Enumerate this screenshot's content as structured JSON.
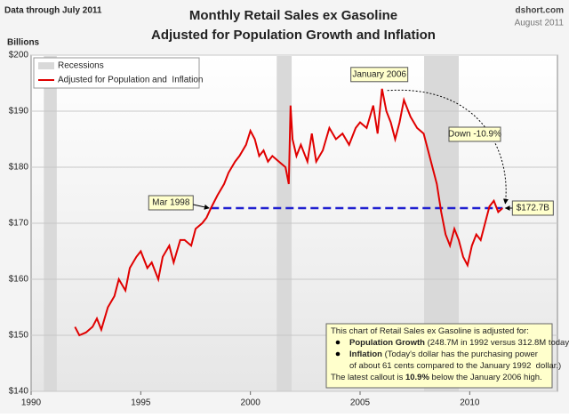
{
  "chart_data": {
    "type": "line",
    "header_left": "Data through July 2011",
    "source": "dshort.com",
    "date": "August 2011",
    "title": "Monthly Retail Sales ex Gasoline",
    "subtitle": "Adjusted for Population Growth and Inflation",
    "y_label": "Billions",
    "xlim": [
      1990,
      2014
    ],
    "xticks": [
      1990,
      1995,
      2000,
      2005,
      2010
    ],
    "ylim": [
      140,
      200
    ],
    "yticks": [
      {
        "value": 140,
        "label": "$140"
      },
      {
        "value": 150,
        "label": "$150"
      },
      {
        "value": 160,
        "label": "$160"
      },
      {
        "value": 170,
        "label": "$170"
      },
      {
        "value": 180,
        "label": "$180"
      },
      {
        "value": 190,
        "label": "$190"
      },
      {
        "value": 200,
        "label": "$200"
      }
    ],
    "grid": true,
    "recessions": {
      "name": "Recessions",
      "color": "#d9d9d9",
      "spans": [
        [
          1990.58,
          1991.17
        ],
        [
          2001.2,
          2001.88
        ],
        [
          2007.92,
          2009.5
        ]
      ]
    },
    "series": [
      {
        "name": "Adjusted for Population and  Inflation",
        "color": "#e00000",
        "x": [
          1992.0,
          1992.2,
          1992.5,
          1992.8,
          1993.0,
          1993.2,
          1993.5,
          1993.8,
          1994.0,
          1994.3,
          1994.5,
          1994.8,
          1995.0,
          1995.3,
          1995.5,
          1995.8,
          1996.0,
          1996.3,
          1996.5,
          1996.8,
          1997.0,
          1997.3,
          1997.5,
          1997.8,
          1998.0,
          1998.2,
          1998.5,
          1998.8,
          1999.0,
          1999.3,
          1999.5,
          1999.8,
          2000.0,
          2000.2,
          2000.4,
          2000.6,
          2000.8,
          2001.0,
          2001.3,
          2001.6,
          2001.75,
          2001.83,
          2001.92,
          2002.1,
          2002.3,
          2002.6,
          2002.8,
          2003.0,
          2003.3,
          2003.6,
          2003.9,
          2004.2,
          2004.5,
          2004.8,
          2005.0,
          2005.3,
          2005.6,
          2005.8,
          2006.0,
          2006.2,
          2006.4,
          2006.6,
          2006.8,
          2007.0,
          2007.3,
          2007.6,
          2007.9,
          2008.1,
          2008.3,
          2008.5,
          2008.7,
          2008.9,
          2009.1,
          2009.3,
          2009.5,
          2009.7,
          2009.9,
          2010.1,
          2010.3,
          2010.5,
          2010.7,
          2010.9,
          2011.1,
          2011.3,
          2011.5
        ],
        "values": [
          151.5,
          150,
          150.5,
          151.5,
          153,
          151,
          155,
          157,
          160,
          158,
          162,
          164,
          165,
          162,
          163,
          160,
          164,
          166,
          163,
          167,
          167,
          166,
          169,
          170,
          171,
          172.7,
          175,
          177,
          179,
          181,
          182,
          184,
          186.5,
          185,
          182,
          183,
          181,
          182,
          181,
          180,
          177,
          191,
          185,
          182,
          184,
          181,
          186,
          181,
          183,
          187,
          185,
          186,
          184,
          187,
          188,
          187,
          191,
          186,
          194,
          190,
          188,
          185,
          188,
          192,
          189,
          187,
          186,
          183,
          180,
          177,
          172,
          168,
          166,
          169,
          167,
          164,
          162.5,
          166,
          168,
          167,
          170,
          173,
          174,
          172,
          172.7
        ]
      }
    ],
    "legend": "upper left",
    "reference": {
      "value": 172.7,
      "label": "$172.7B",
      "color": "#1f1fd0",
      "x": [
        1998.2,
        2011.5
      ]
    },
    "annotations": {
      "start": "Mar 1998",
      "peak": "January 2006",
      "change": "Down -10.9%"
    },
    "note": [
      [
        {
          "text": "This chart of Retail Sales ex Gasoline is adjusted for:"
        }
      ],
      [
        {
          "text": "Population Growth",
          "bold": true
        },
        {
          "text": " (248.7M in 1992 versus 312.8M today)"
        }
      ],
      [
        {
          "text": "Inflation",
          "bold": true
        },
        {
          "text": " (Today's dollar has the purchasing power"
        }
      ],
      [
        {
          "text": "of about 61 cents compared to the January 1992  dollar.)"
        }
      ],
      [
        {
          "text": "The latest callout is "
        },
        {
          "text": "10.9%",
          "bold": true
        },
        {
          "text": " below the January 2006 high."
        }
      ]
    ]
  }
}
